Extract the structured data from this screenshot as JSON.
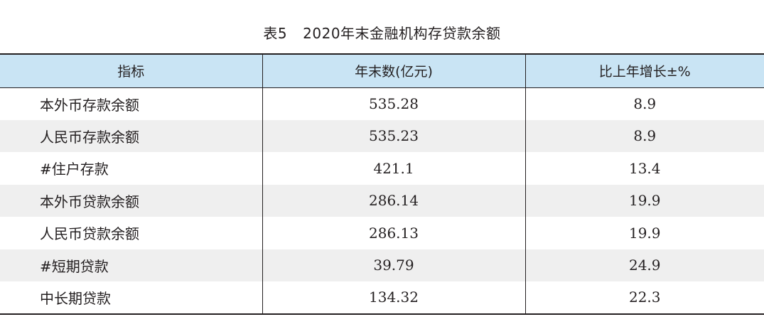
{
  "caption": {
    "number": "表5",
    "title": "2020年末金融机构存贷款余额"
  },
  "table": {
    "headers": [
      "指标",
      "年末数(亿元)",
      "比上年增长±%"
    ],
    "rows": [
      {
        "label": "本外币存款余额",
        "value": "535.28",
        "growth": "8.9"
      },
      {
        "label": "人民币存款余额",
        "value": "535.23",
        "growth": "8.9"
      },
      {
        "label": "#住户存款",
        "value": "421.1",
        "growth": "13.4"
      },
      {
        "label": "本外币贷款余额",
        "value": "286.14",
        "growth": "19.9"
      },
      {
        "label": "人民币贷款余额",
        "value": "286.13",
        "growth": "19.9"
      },
      {
        "label": "#短期贷款",
        "value": "39.79",
        "growth": "24.9"
      },
      {
        "label": "中长期贷款",
        "value": "134.32",
        "growth": "22.3"
      }
    ]
  }
}
